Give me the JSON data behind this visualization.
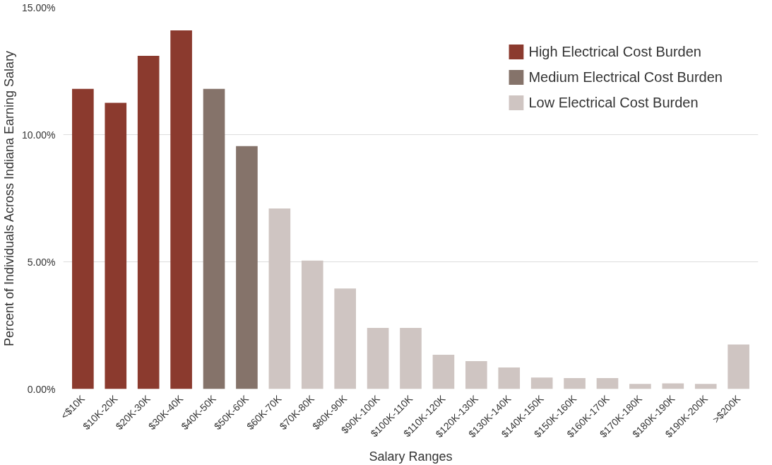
{
  "chart_data": {
    "type": "bar",
    "xlabel": "Salary Ranges",
    "ylabel": "Percent of Individuals Across Indiana Earning Salary",
    "categories": [
      "<$10K",
      "$10K-20K",
      "$20K-30K",
      "$30K-40K",
      "$40K-50K",
      "$50K-60K",
      "$60K-70K",
      "$70K-80K",
      "$80K-90K",
      "$90K-100K",
      "$100K-110K",
      "$110K-120K",
      "$120K-130K",
      "$130K-140K",
      "$140K-150K",
      "$150K-160K",
      "$160K-170K",
      "$170K-180K",
      "$180K-190K",
      "$190K-200K",
      ">$200K"
    ],
    "series": [
      {
        "name": "High Electrical Cost Burden",
        "color": "#8b3a2e",
        "values": [
          11.8,
          11.25,
          13.1,
          14.1,
          null,
          null,
          null,
          null,
          null,
          null,
          null,
          null,
          null,
          null,
          null,
          null,
          null,
          null,
          null,
          null,
          null
        ]
      },
      {
        "name": "Medium Electrical Cost Burden",
        "color": "#85736a",
        "values": [
          null,
          null,
          null,
          null,
          11.8,
          9.55,
          null,
          null,
          null,
          null,
          null,
          null,
          null,
          null,
          null,
          null,
          null,
          null,
          null,
          null,
          null
        ]
      },
      {
        "name": "Low Electrical Cost Burden",
        "color": "#cfc5c2",
        "values": [
          null,
          null,
          null,
          null,
          null,
          null,
          7.1,
          5.05,
          3.95,
          2.4,
          2.4,
          1.35,
          1.1,
          0.85,
          0.45,
          0.43,
          0.43,
          0.2,
          0.22,
          0.2,
          1.75
        ]
      }
    ],
    "ylim": [
      0,
      15
    ],
    "yticks": [
      {
        "value": 0,
        "label": "0.00%"
      },
      {
        "value": 5,
        "label": "5.00%"
      },
      {
        "value": 10,
        "label": "10.00%"
      },
      {
        "value": 15,
        "label": "15.00%"
      }
    ],
    "grid": "y",
    "legend": "top right"
  }
}
